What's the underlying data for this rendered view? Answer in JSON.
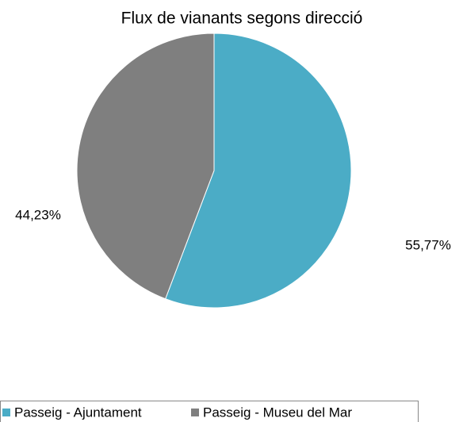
{
  "chart_data": {
    "type": "pie",
    "title": "Flux de vianants segons direcció",
    "categories": [
      "Passeig - Ajuntament",
      "Passeig - Museu del Mar"
    ],
    "values": [
      55.77,
      44.23
    ],
    "value_labels": [
      "55,77%",
      "44,23%"
    ],
    "colors": [
      "#4bacc6",
      "#7f7f7f"
    ],
    "legend": "bottom"
  }
}
